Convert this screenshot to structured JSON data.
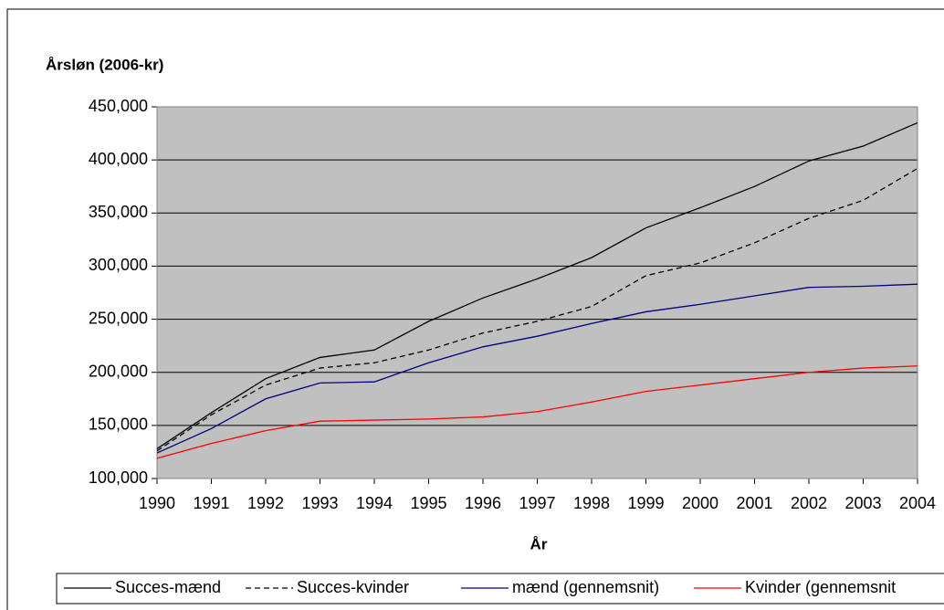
{
  "chart_data": {
    "type": "line",
    "y_label": "Årsløn (2006-kr)",
    "x_label": "År",
    "x": [
      1990,
      1991,
      1992,
      1993,
      1994,
      1995,
      1996,
      1997,
      1998,
      1999,
      2000,
      2001,
      2002,
      2003,
      2004
    ],
    "xlim": [
      1990,
      2004
    ],
    "xticks": [
      1990,
      1991,
      1992,
      1993,
      1994,
      1995,
      1996,
      1997,
      1998,
      1999,
      2000,
      2001,
      2002,
      2003,
      2004
    ],
    "ylim": [
      100000,
      450000
    ],
    "yticks": [
      {
        "value": 100000,
        "label": "100,000"
      },
      {
        "value": 150000,
        "label": "150,000"
      },
      {
        "value": 200000,
        "label": "200,000"
      },
      {
        "value": 250000,
        "label": "250,000"
      },
      {
        "value": 300000,
        "label": "300,000"
      },
      {
        "value": 350000,
        "label": "350,000"
      },
      {
        "value": 400000,
        "label": "400,000"
      },
      {
        "value": 450000,
        "label": "450,000"
      }
    ],
    "grid": true,
    "background": "#c0c0c0",
    "legend": "bottom",
    "series": [
      {
        "name": "Succes-mænd",
        "color": "#000000",
        "linestyle": "solid",
        "values": [
          128000,
          162000,
          194000,
          214000,
          221000,
          248000,
          270000,
          288000,
          308000,
          336000,
          355000,
          375000,
          399000,
          413000,
          435000
        ]
      },
      {
        "name": "Succes-kvinder",
        "color": "#000000",
        "linestyle": "dashed",
        "values": [
          126000,
          160000,
          188000,
          204000,
          209000,
          221000,
          237000,
          248000,
          262000,
          291000,
          303000,
          322000,
          345000,
          362000,
          392000
        ]
      },
      {
        "name": "mænd (gennemsnit)",
        "color": "#000080",
        "linestyle": "solid",
        "values": [
          124000,
          147000,
          175000,
          190000,
          191000,
          209000,
          224000,
          234000,
          246000,
          257000,
          264000,
          272000,
          280000,
          281000,
          283000
        ]
      },
      {
        "name": "Kvinder (gennemsnit",
        "color": "#ff0000",
        "linestyle": "solid",
        "values": [
          119000,
          133000,
          145000,
          154000,
          155000,
          156000,
          158000,
          163000,
          172000,
          182000,
          188000,
          194000,
          200000,
          204000,
          206000
        ]
      }
    ]
  }
}
